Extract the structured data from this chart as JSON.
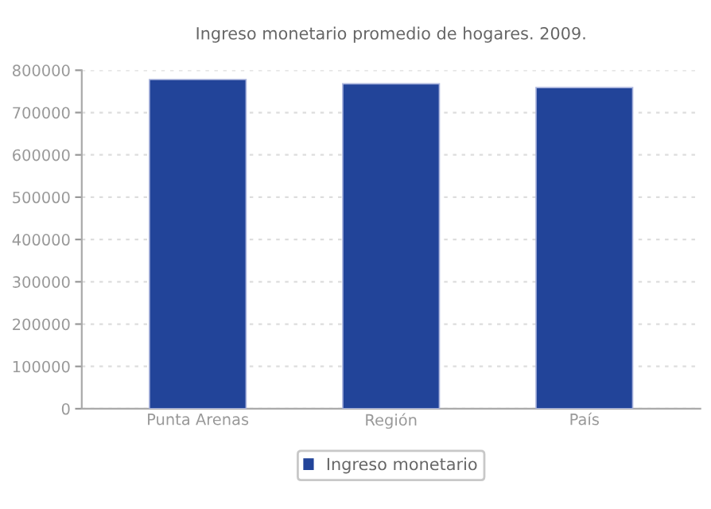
{
  "chart_data": {
    "type": "bar",
    "title": "Ingreso monetario promedio de hogares. 2009.",
    "categories": [
      "Punta Arenas",
      "Región",
      "País"
    ],
    "series": [
      {
        "name": "Ingreso monetario",
        "color": "#224499",
        "values": [
          778000,
          768000,
          759000
        ]
      }
    ],
    "ylim": [
      0,
      800000
    ],
    "yticks": [
      0,
      100000,
      200000,
      300000,
      400000,
      500000,
      600000,
      700000,
      800000
    ],
    "grid": "y",
    "legend": "bottom"
  }
}
